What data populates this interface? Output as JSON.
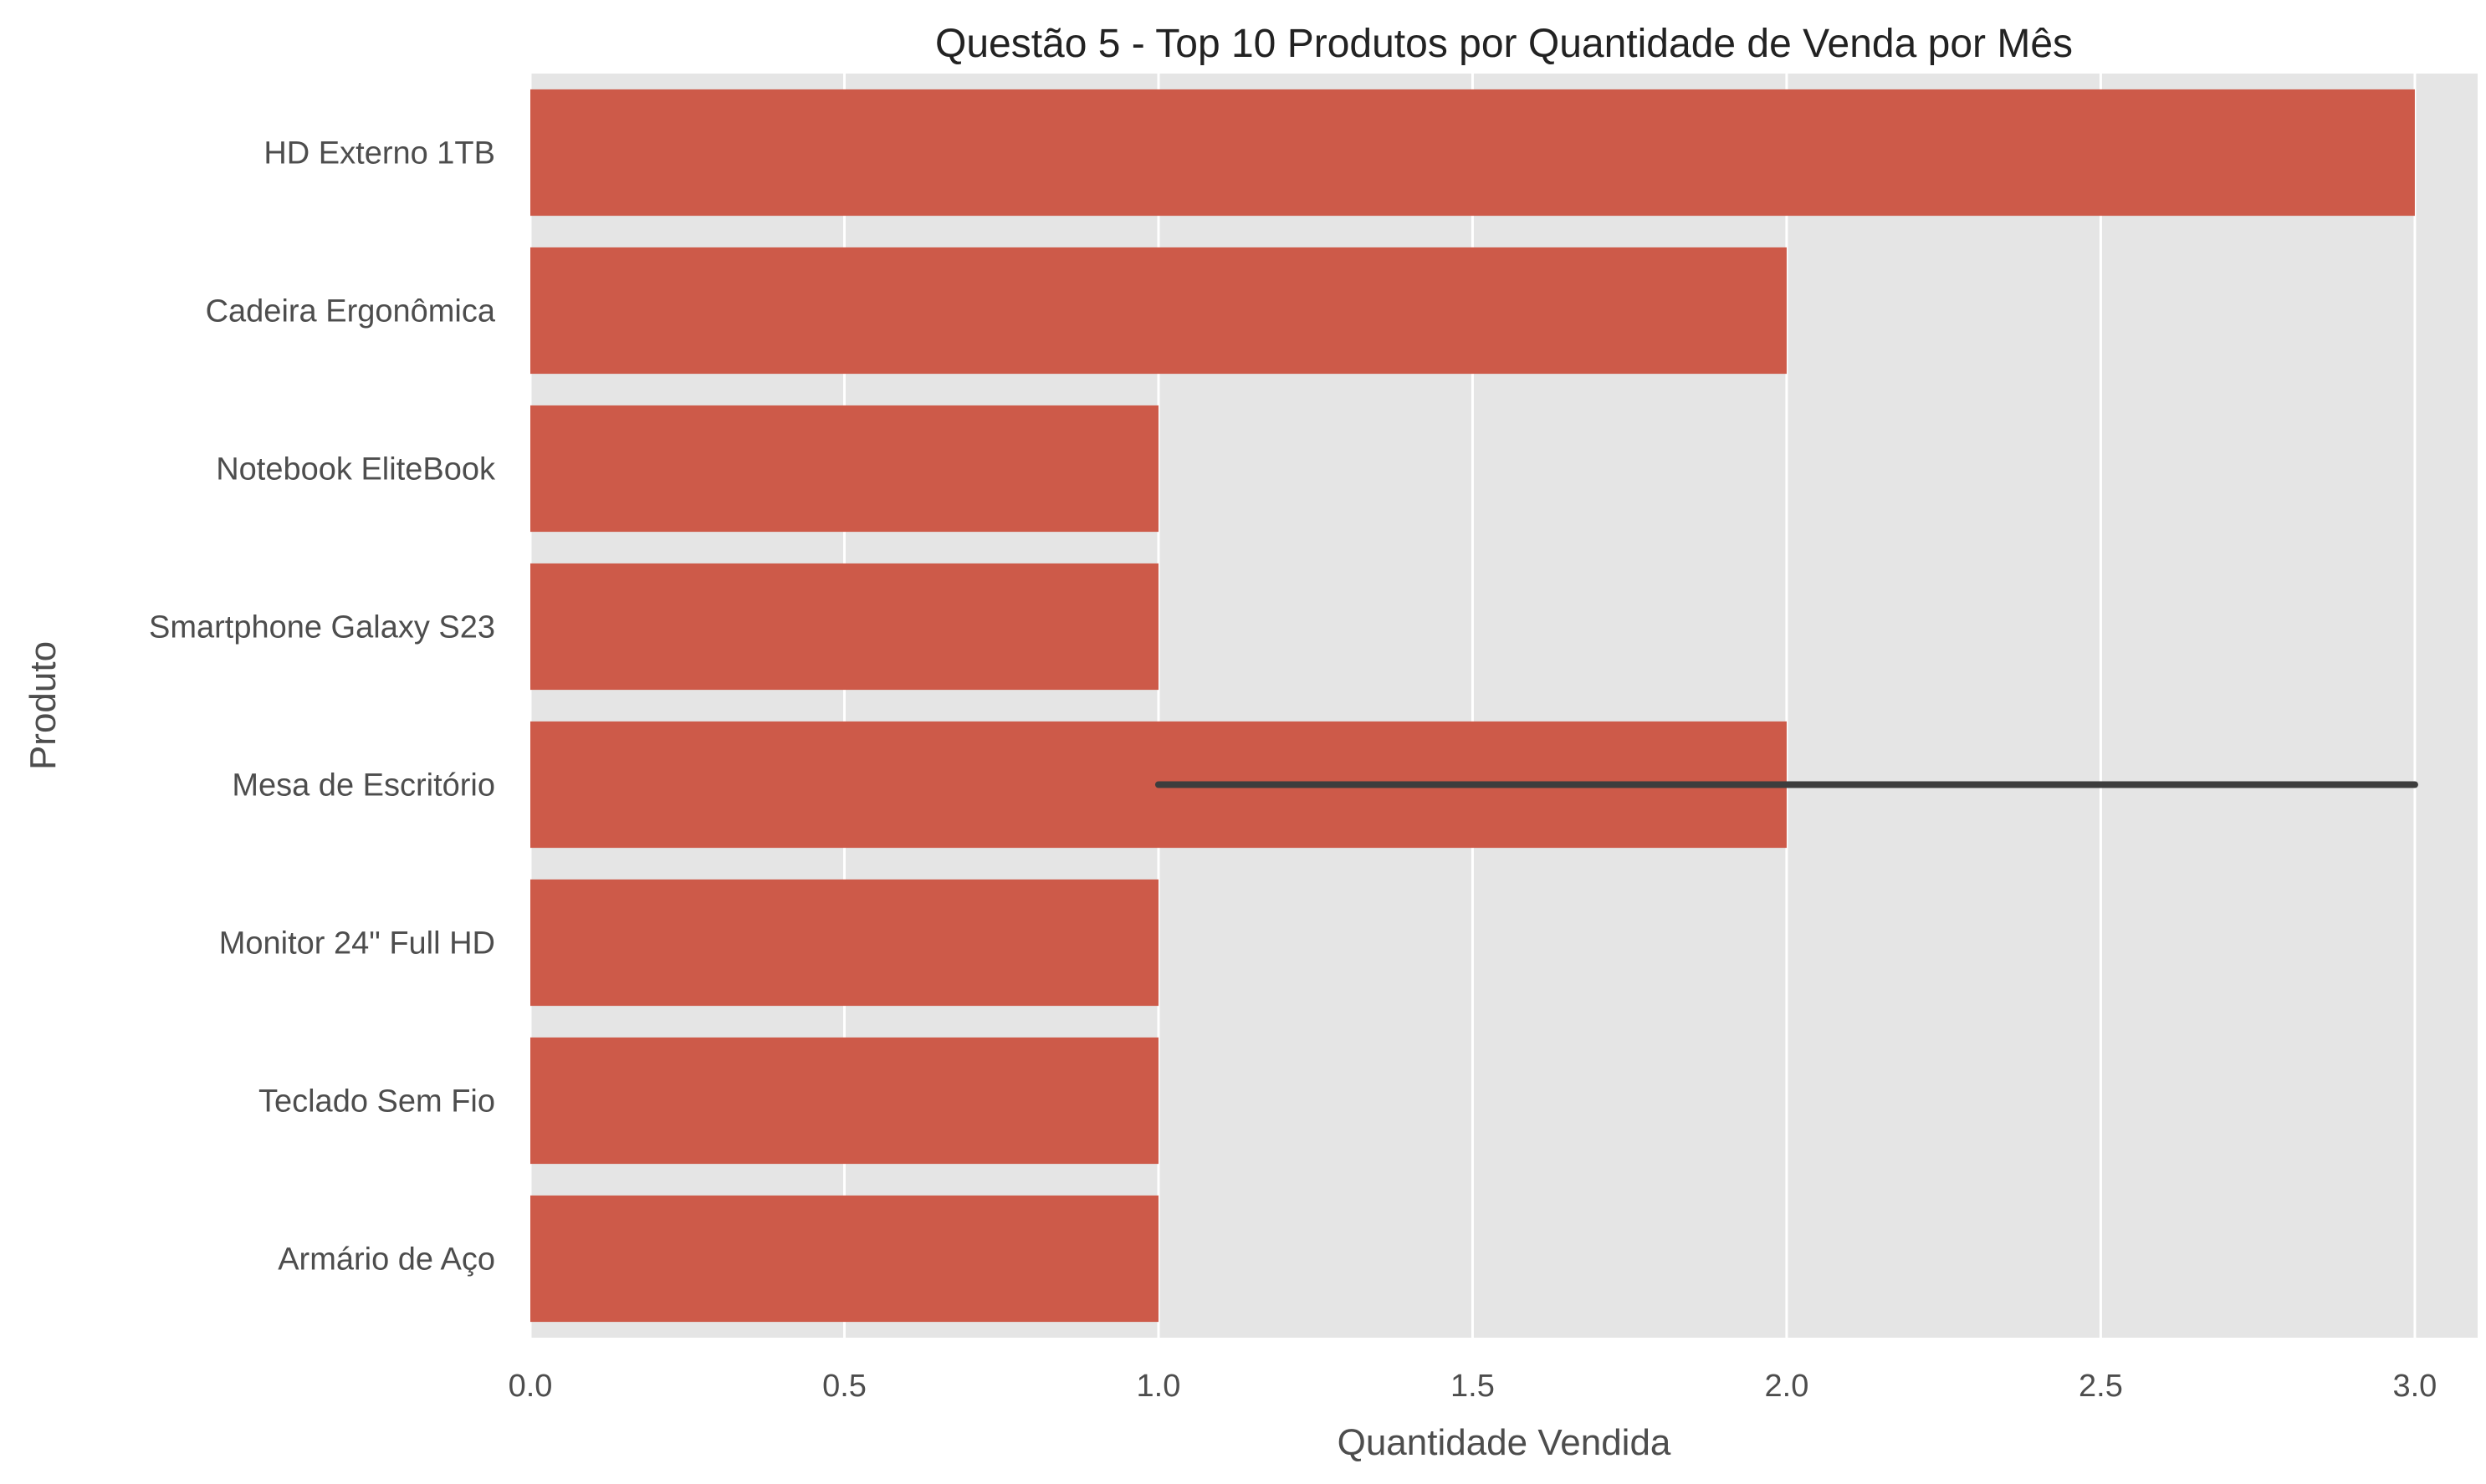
{
  "chart_data": {
    "type": "bar",
    "orientation": "horizontal",
    "title": "Questão 5 - Top 10 Produtos por Quantidade de Venda por Mês",
    "xlabel": "Quantidade Vendida",
    "ylabel": "Produto",
    "xlim": [
      0,
      3.1
    ],
    "xticks": [
      "0.0",
      "0.5",
      "1.0",
      "1.5",
      "2.0",
      "2.5",
      "3.0"
    ],
    "grid": true,
    "categories": [
      "HD Externo 1TB",
      "Cadeira Ergonômica",
      "Notebook EliteBook",
      "Smartphone Galaxy S23",
      "Mesa de Escritório",
      "Monitor 24\" Full HD",
      "Teclado Sem Fio",
      "Armário de Aço"
    ],
    "values": [
      3,
      2,
      1,
      1,
      2,
      1,
      1,
      1
    ],
    "error_bars": [
      {
        "category": "Mesa de Escritório",
        "low": 1,
        "high": 3
      }
    ]
  },
  "colors": {
    "bar": "#cd5a49",
    "plot_background": "#e5e5e5",
    "grid": "#ffffff",
    "error_bar": "#3d3d3d",
    "text": "#4d4d4d",
    "title": "#222222"
  }
}
